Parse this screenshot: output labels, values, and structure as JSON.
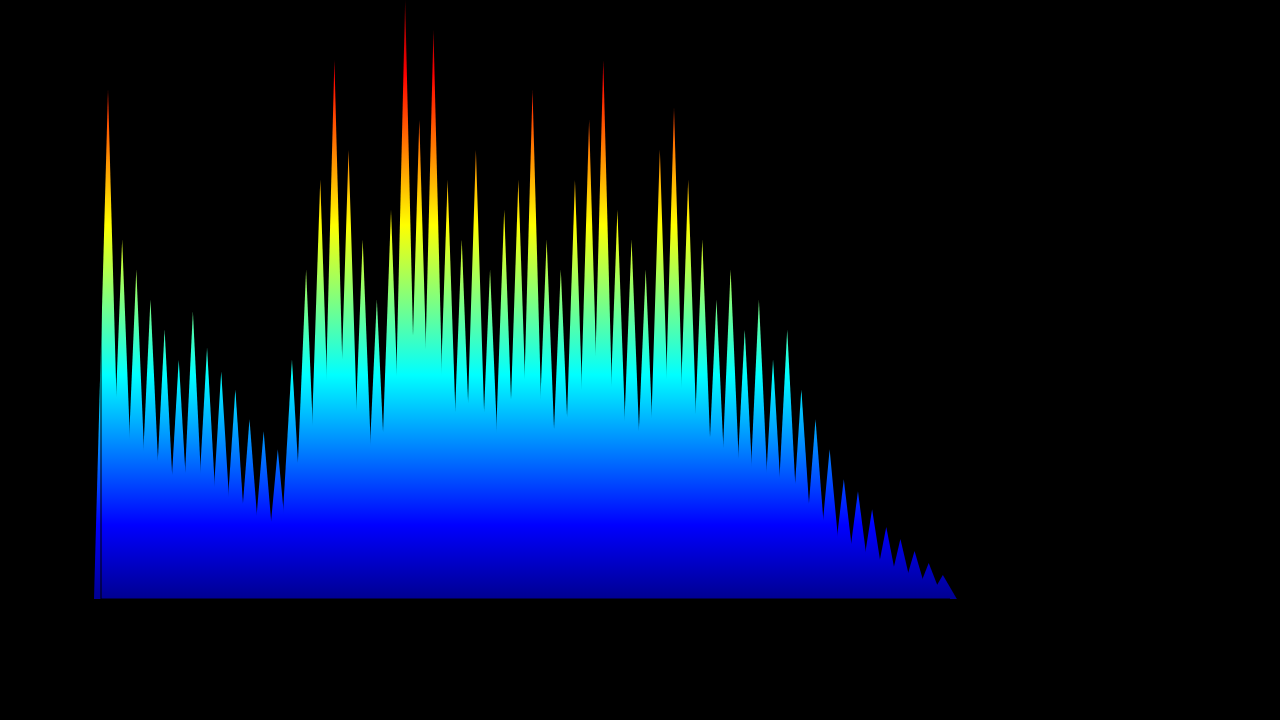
{
  "chart_data": {
    "type": "bar",
    "values": [
      85,
      60,
      55,
      50,
      45,
      40,
      48,
      42,
      38,
      35,
      30,
      28,
      25,
      40,
      55,
      70,
      90,
      75,
      60,
      50,
      65,
      100,
      80,
      95,
      70,
      60,
      75,
      55,
      65,
      70,
      85,
      60,
      55,
      70,
      80,
      90,
      65,
      60,
      55,
      75,
      82,
      70,
      60,
      50,
      55,
      45,
      50,
      40,
      45,
      35,
      30,
      25,
      20,
      18,
      15,
      12,
      10,
      8,
      6,
      4
    ],
    "ylim": [
      0,
      100
    ],
    "tick_labels": false,
    "grid": false
  }
}
